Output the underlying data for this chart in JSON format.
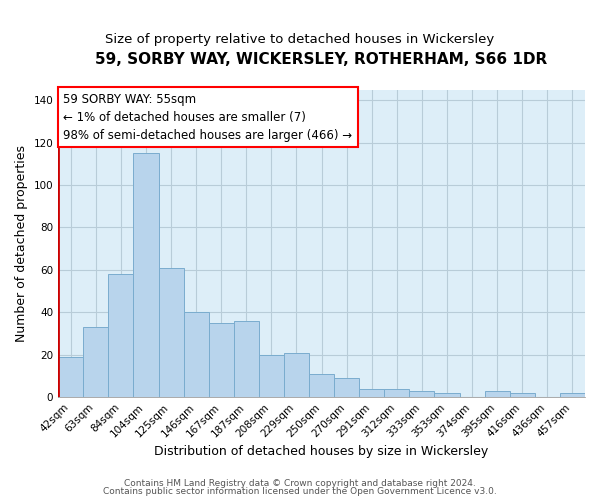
{
  "title": "59, SORBY WAY, WICKERSLEY, ROTHERHAM, S66 1DR",
  "subtitle": "Size of property relative to detached houses in Wickersley",
  "xlabel": "Distribution of detached houses by size in Wickersley",
  "ylabel": "Number of detached properties",
  "bar_labels": [
    "42sqm",
    "63sqm",
    "84sqm",
    "104sqm",
    "125sqm",
    "146sqm",
    "167sqm",
    "187sqm",
    "208sqm",
    "229sqm",
    "250sqm",
    "270sqm",
    "291sqm",
    "312sqm",
    "333sqm",
    "353sqm",
    "374sqm",
    "395sqm",
    "416sqm",
    "436sqm",
    "457sqm"
  ],
  "bar_values": [
    19,
    33,
    58,
    115,
    61,
    40,
    35,
    36,
    20,
    21,
    11,
    9,
    4,
    4,
    3,
    2,
    0,
    3,
    2,
    0,
    2
  ],
  "bar_color": "#b8d4ec",
  "bar_edge_color": "#7aacce",
  "annotation_box_text": "59 SORBY WAY: 55sqm\n← 1% of detached houses are smaller (7)\n98% of semi-detached houses are larger (466) →",
  "highlight_bar_color": "#cc0000",
  "ylim": [
    0,
    145
  ],
  "yticks": [
    0,
    20,
    40,
    60,
    80,
    100,
    120,
    140
  ],
  "footer_line1": "Contains HM Land Registry data © Crown copyright and database right 2024.",
  "footer_line2": "Contains public sector information licensed under the Open Government Licence v3.0.",
  "background_color": "#ffffff",
  "plot_bg_color": "#ddeef8",
  "grid_color": "#b8ccd8",
  "title_fontsize": 11,
  "subtitle_fontsize": 9.5,
  "axis_label_fontsize": 9,
  "tick_fontsize": 7.5,
  "annotation_fontsize": 8.5,
  "footer_fontsize": 6.5
}
